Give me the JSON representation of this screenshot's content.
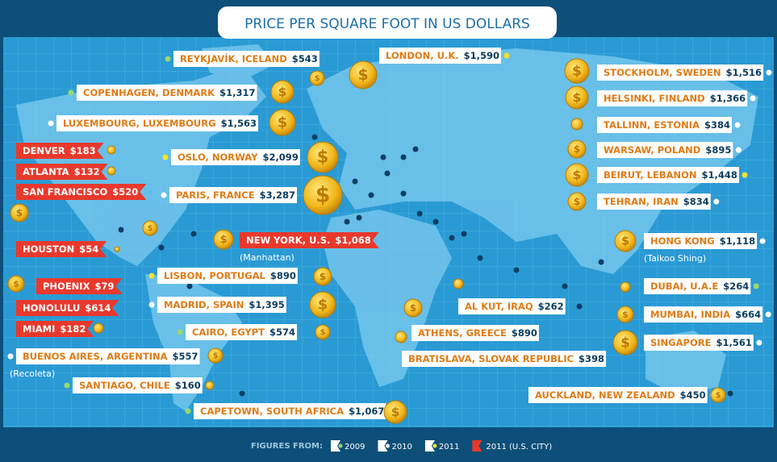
{
  "title": "PRICE PER SQUARE FOOT IN US DOLLARS",
  "cities": [
    {
      "name": "REYKJAVÍK, ICELAND",
      "price": "$543",
      "dot": "#9bd86a"
    },
    {
      "name": "COPENHAGEN, DENMARK",
      "price": "$1,317",
      "dot": "#9bd86a"
    },
    {
      "name": "LUXEMBOURG, LUXEMBOURG",
      "price": "$1,563",
      "dot": "#ffffff"
    },
    {
      "name": "DENVER",
      "price": "$183",
      "dot": "#e8392c"
    },
    {
      "name": "ATLANTA",
      "price": "$132",
      "dot": "#e8392c"
    },
    {
      "name": "SAN FRANCISCO",
      "price": "$520",
      "dot": "#e8392c"
    },
    {
      "name": "HOUSTON",
      "price": "$54",
      "dot": "#e8392c"
    },
    {
      "name": "PHOENIX",
      "price": "$79",
      "dot": "#e8392c"
    },
    {
      "name": "HONOLULU",
      "price": "$614",
      "dot": "#e8392c"
    },
    {
      "name": "MIAMI",
      "price": "$182",
      "dot": "#e8392c"
    },
    {
      "name": "OSLO, NORWAY",
      "price": "$2,099",
      "dot": "#f2e230"
    },
    {
      "name": "PARIS, FRANCE",
      "price": "$3,287",
      "dot": "#ffffff"
    },
    {
      "name": "NEW YORK, U.S.",
      "price": "$1,068",
      "dot": "#e8392c",
      "note": "(Manhattan)"
    },
    {
      "name": "LISBON, PORTUGAL",
      "price": "$890",
      "dot": "#f2e230"
    },
    {
      "name": "MADRID, SPAIN",
      "price": "$1,395",
      "dot": "#ffffff"
    },
    {
      "name": "CAIRO, EGYPT",
      "price": "$574",
      "dot": "#9bd86a"
    },
    {
      "name": "BUENOS AIRES, ARGENTINA",
      "price": "$557",
      "dot": "#ffffff",
      "note": "(Recoleta)"
    },
    {
      "name": "SANTIAGO, CHILE",
      "price": "$160",
      "dot": "#9bd86a"
    },
    {
      "name": "CAPETOWN, SOUTH AFRICA",
      "price": "$1,067",
      "dot": "#9bd86a"
    },
    {
      "name": "LONDON, U.K.",
      "price": "$1,590",
      "dot": "#f2e230"
    },
    {
      "name": "STOCKHOLM, SWEDEN",
      "price": "$1,516",
      "dot": "#ffffff"
    },
    {
      "name": "HELSINKI, FINLAND",
      "price": "$1,366",
      "dot": "#ffffff"
    },
    {
      "name": "TALLINN, ESTONIA",
      "price": "$384",
      "dot": "#ffffff"
    },
    {
      "name": "WARSAW, POLAND",
      "price": "$895",
      "dot": "#ffffff"
    },
    {
      "name": "BEIRUT, LEBANON",
      "price": "$1,448",
      "dot": "#f2e230"
    },
    {
      "name": "TEHRAN, IRAN",
      "price": "$834",
      "dot": "#ffffff"
    },
    {
      "name": "HONG KONG",
      "price": "$1,118",
      "dot": "#ffffff",
      "note": "(Taikoo Shing)"
    },
    {
      "name": "DUBAI, U.A.E",
      "price": "$264",
      "dot": "#9bd86a"
    },
    {
      "name": "MUMBAI, INDIA",
      "price": "$664",
      "dot": "#ffffff"
    },
    {
      "name": "SINGAPORE",
      "price": "$1,561",
      "dot": "#ffffff"
    },
    {
      "name": "AL KUT, IRAQ",
      "price": "$262",
      "dot": "#ffffff"
    },
    {
      "name": "ATHENS, GREECE",
      "price": "$890",
      "dot": "#ffffff"
    },
    {
      "name": "BRATISLAVA, SLOVAK REPUBLIC",
      "price": "$398",
      "dot": "#ffffff"
    },
    {
      "name": "AUCKLAND, NEW ZEALAND",
      "price": "$450",
      "dot": "#ffffff"
    }
  ],
  "legend": {
    "label": "FIGURES FROM:",
    "items": [
      {
        "label": "2009",
        "color": "#9bd86a"
      },
      {
        "label": "2010",
        "color": "#ffffff"
      },
      {
        "label": "2011",
        "color": "#f2e230"
      },
      {
        "label": "2011 (U.S. CITY)",
        "color": "#e8392c"
      }
    ]
  }
}
